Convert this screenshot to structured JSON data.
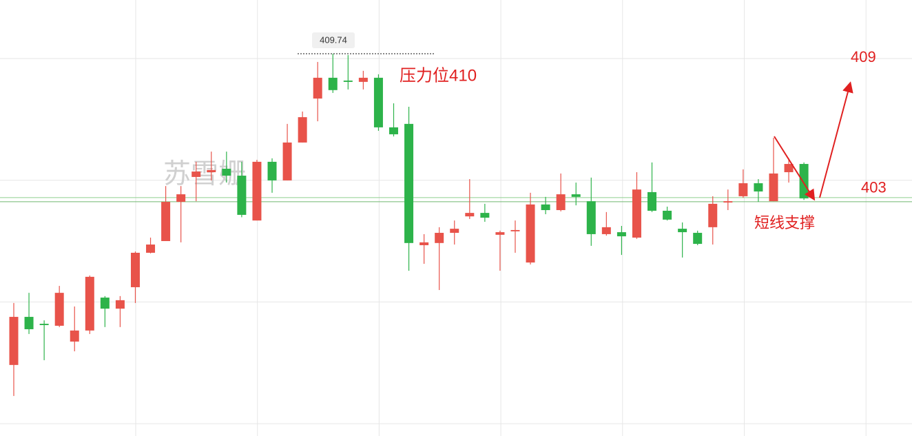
{
  "chart_data": {
    "type": "candlestick",
    "ylim": [
      392.09,
      412.22
    ],
    "grid": true,
    "up_color": "#e8534a",
    "down_color": "#2db34a",
    "open": [
      395.37,
      397.59,
      397.27,
      397.18,
      396.45,
      396.96,
      398.48,
      397.97,
      398.96,
      400.55,
      401.09,
      402.9,
      404.05,
      404.27,
      404.43,
      404.11,
      402.04,
      404.75,
      403.89,
      405.64,
      407.67,
      408.63,
      408.5,
      408.44,
      408.63,
      406.34,
      406.5,
      400.9,
      401.0,
      401.47,
      402.23,
      402.39,
      401.38,
      401.54,
      400.1,
      402.78,
      402.52,
      403.25,
      402.93,
      401.41,
      401.5,
      401.25,
      403.35,
      402.49,
      401.66,
      401.47,
      401.73,
      402.87,
      403.16,
      403.76,
      402.93,
      404.27,
      404.65
    ],
    "high": [
      398.23,
      398.7,
      397.43,
      399.02,
      398.07,
      399.5,
      398.55,
      398.55,
      400.61,
      401.25,
      403.63,
      403.63,
      404.75,
      405.22,
      405.22,
      404.75,
      404.84,
      404.91,
      406.5,
      407.07,
      409.36,
      409.74,
      409.68,
      408.95,
      408.79,
      407.45,
      407.29,
      401.41,
      401.73,
      402.04,
      403.95,
      402.81,
      401.57,
      402.04,
      403.32,
      403.13,
      404.21,
      403.79,
      404.02,
      402.43,
      401.79,
      404.27,
      404.72,
      402.68,
      401.95,
      401.57,
      403.16,
      403.47,
      404.4,
      403.95,
      405.86,
      404.91,
      404.72
    ],
    "low": [
      393.94,
      396.8,
      395.59,
      397.12,
      396.0,
      396.8,
      397.12,
      397.12,
      398.23,
      400.52,
      401.09,
      401.03,
      402.93,
      403.89,
      403.79,
      402.19,
      402.04,
      403.32,
      403.89,
      405.64,
      406.62,
      407.93,
      408.09,
      408.09,
      406.18,
      405.92,
      399.72,
      400.04,
      398.83,
      400.93,
      402.11,
      401.98,
      399.72,
      400.55,
      400.01,
      402.33,
      402.46,
      402.74,
      400.87,
      401.34,
      400.45,
      401.19,
      402.43,
      402.04,
      400.33,
      400.9,
      400.93,
      402.52,
      403.09,
      402.9,
      402.93,
      403.79,
      402.99
    ],
    "close": [
      397.59,
      397.02,
      397.21,
      398.7,
      396.96,
      399.44,
      397.97,
      398.36,
      400.55,
      400.93,
      402.9,
      403.25,
      404.3,
      404.37,
      404.11,
      402.3,
      404.75,
      403.89,
      405.64,
      406.81,
      408.63,
      408.06,
      408.44,
      408.63,
      406.34,
      406.02,
      401.0,
      401.03,
      401.47,
      401.66,
      402.39,
      402.17,
      401.5,
      401.6,
      402.78,
      402.52,
      403.25,
      403.13,
      401.41,
      401.73,
      401.31,
      403.47,
      402.49,
      402.08,
      401.5,
      400.96,
      402.81,
      402.93,
      403.76,
      403.38,
      404.21,
      404.65,
      403.06
    ],
    "high_marker": 409.74,
    "support_line": 403,
    "target_label": "409",
    "resistance_label": "压力位410",
    "support_label": "短线支撑",
    "watermark": "苏雪姗"
  }
}
